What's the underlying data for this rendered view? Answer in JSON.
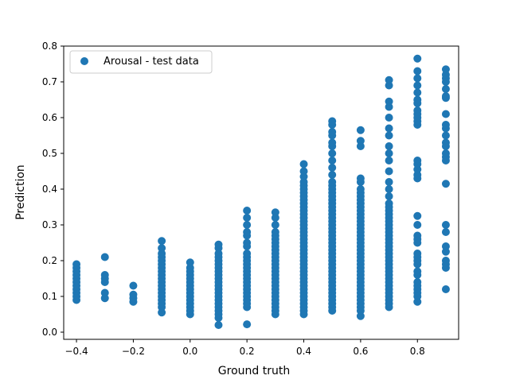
{
  "chart_data": {
    "type": "scatter",
    "xlabel": "Ground truth",
    "ylabel": "Prediction",
    "xlim": [
      -0.445,
      0.945
    ],
    "ylim": [
      -0.02,
      0.8
    ],
    "x_ticks": [
      -0.4,
      -0.2,
      0.0,
      0.2,
      0.4,
      0.6,
      0.8
    ],
    "x_tick_labels": [
      "−0.4",
      "−0.2",
      "0.0",
      "0.2",
      "0.4",
      "0.6",
      "0.8"
    ],
    "y_ticks": [
      0.0,
      0.1,
      0.2,
      0.3,
      0.4,
      0.5,
      0.6,
      0.7,
      0.8
    ],
    "y_tick_labels": [
      "0.0",
      "0.1",
      "0.2",
      "0.3",
      "0.4",
      "0.5",
      "0.6",
      "0.7",
      "0.8"
    ],
    "grid": false,
    "legend_position": "upper-left",
    "series": [
      {
        "name": "Arousal - test data",
        "color": "#1f77b4",
        "columns": [
          {
            "x": -0.4,
            "y": [
              0.09,
              0.1,
              0.11,
              0.12,
              0.13,
              0.14,
              0.15,
              0.16,
              0.17,
              0.18,
              0.19
            ]
          },
          {
            "x": -0.3,
            "y": [
              0.095,
              0.11,
              0.14,
              0.15,
              0.16,
              0.21
            ]
          },
          {
            "x": -0.2,
            "y": [
              0.085,
              0.095,
              0.105,
              0.13
            ]
          },
          {
            "x": -0.1,
            "y": [
              0.055,
              0.07,
              0.08,
              0.09,
              0.1,
              0.11,
              0.12,
              0.13,
              0.14,
              0.15,
              0.16,
              0.17,
              0.18,
              0.19,
              0.2,
              0.21,
              0.22,
              0.235,
              0.255
            ]
          },
          {
            "x": 0.0,
            "y": [
              0.05,
              0.06,
              0.07,
              0.08,
              0.09,
              0.1,
              0.11,
              0.12,
              0.13,
              0.14,
              0.15,
              0.16,
              0.17,
              0.18,
              0.195
            ]
          },
          {
            "x": 0.1,
            "y": [
              0.02,
              0.04,
              0.05,
              0.06,
              0.07,
              0.08,
              0.09,
              0.1,
              0.11,
              0.12,
              0.13,
              0.14,
              0.15,
              0.16,
              0.17,
              0.18,
              0.19,
              0.2,
              0.21,
              0.22,
              0.235,
              0.245
            ]
          },
          {
            "x": 0.2,
            "y": [
              0.022,
              0.07,
              0.08,
              0.09,
              0.1,
              0.11,
              0.12,
              0.13,
              0.14,
              0.15,
              0.16,
              0.17,
              0.18,
              0.19,
              0.2,
              0.21,
              0.22,
              0.24,
              0.25,
              0.27,
              0.28,
              0.3,
              0.32,
              0.34
            ]
          },
          {
            "x": 0.3,
            "y": [
              0.05,
              0.06,
              0.07,
              0.08,
              0.09,
              0.1,
              0.11,
              0.12,
              0.13,
              0.14,
              0.15,
              0.16,
              0.17,
              0.18,
              0.19,
              0.2,
              0.21,
              0.22,
              0.23,
              0.24,
              0.25,
              0.26,
              0.27,
              0.28,
              0.3,
              0.32,
              0.335
            ]
          },
          {
            "x": 0.4,
            "y": [
              0.05,
              0.06,
              0.07,
              0.08,
              0.09,
              0.1,
              0.11,
              0.12,
              0.13,
              0.14,
              0.15,
              0.16,
              0.17,
              0.18,
              0.19,
              0.2,
              0.21,
              0.22,
              0.23,
              0.24,
              0.25,
              0.26,
              0.27,
              0.28,
              0.29,
              0.3,
              0.31,
              0.32,
              0.33,
              0.34,
              0.35,
              0.36,
              0.37,
              0.38,
              0.39,
              0.4,
              0.41,
              0.42,
              0.435,
              0.45,
              0.47
            ]
          },
          {
            "x": 0.5,
            "y": [
              0.06,
              0.07,
              0.08,
              0.09,
              0.1,
              0.11,
              0.12,
              0.13,
              0.14,
              0.15,
              0.16,
              0.17,
              0.18,
              0.19,
              0.2,
              0.21,
              0.22,
              0.23,
              0.24,
              0.25,
              0.26,
              0.27,
              0.28,
              0.29,
              0.3,
              0.31,
              0.32,
              0.33,
              0.34,
              0.35,
              0.36,
              0.37,
              0.38,
              0.39,
              0.4,
              0.41,
              0.42,
              0.44,
              0.46,
              0.48,
              0.5,
              0.52,
              0.53,
              0.55,
              0.56,
              0.58,
              0.59
            ]
          },
          {
            "x": 0.6,
            "y": [
              0.045,
              0.06,
              0.07,
              0.08,
              0.09,
              0.1,
              0.11,
              0.12,
              0.13,
              0.14,
              0.15,
              0.16,
              0.17,
              0.18,
              0.19,
              0.2,
              0.21,
              0.22,
              0.23,
              0.24,
              0.25,
              0.26,
              0.27,
              0.28,
              0.29,
              0.3,
              0.31,
              0.32,
              0.33,
              0.34,
              0.35,
              0.36,
              0.37,
              0.38,
              0.39,
              0.4,
              0.42,
              0.43,
              0.52,
              0.535,
              0.565
            ]
          },
          {
            "x": 0.7,
            "y": [
              0.07,
              0.08,
              0.09,
              0.1,
              0.11,
              0.12,
              0.13,
              0.14,
              0.15,
              0.16,
              0.17,
              0.18,
              0.19,
              0.2,
              0.21,
              0.22,
              0.23,
              0.24,
              0.25,
              0.26,
              0.27,
              0.28,
              0.29,
              0.3,
              0.31,
              0.32,
              0.33,
              0.34,
              0.35,
              0.36,
              0.38,
              0.4,
              0.42,
              0.45,
              0.48,
              0.5,
              0.52,
              0.55,
              0.57,
              0.6,
              0.63,
              0.645,
              0.69,
              0.705
            ]
          },
          {
            "x": 0.8,
            "y": [
              0.085,
              0.1,
              0.11,
              0.12,
              0.13,
              0.14,
              0.16,
              0.17,
              0.19,
              0.2,
              0.21,
              0.22,
              0.25,
              0.26,
              0.27,
              0.3,
              0.325,
              0.43,
              0.44,
              0.455,
              0.47,
              0.48,
              0.58,
              0.59,
              0.6,
              0.61,
              0.62,
              0.64,
              0.65,
              0.67,
              0.69,
              0.71,
              0.73,
              0.765
            ]
          },
          {
            "x": 0.9,
            "y": [
              0.12,
              0.18,
              0.19,
              0.2,
              0.225,
              0.24,
              0.28,
              0.3,
              0.415,
              0.48,
              0.49,
              0.5,
              0.52,
              0.53,
              0.55,
              0.57,
              0.58,
              0.61,
              0.655,
              0.66,
              0.68,
              0.7,
              0.71,
              0.72,
              0.735
            ]
          }
        ]
      }
    ]
  }
}
